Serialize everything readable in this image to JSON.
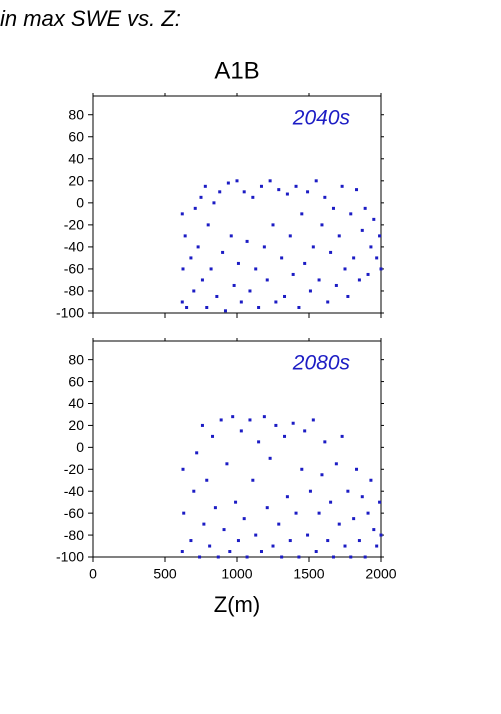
{
  "title": "in max SWE vs. Z:",
  "subtitle": "A1B",
  "chart_data": [
    {
      "type": "scatter",
      "annotation": "2040s",
      "color": "#1c1cc4",
      "ylim": [
        -100,
        97
      ],
      "yticks": [
        -100,
        -80,
        -60,
        -40,
        -20,
        0,
        20,
        40,
        60,
        80
      ],
      "xlim": [
        0,
        2000
      ],
      "x": [
        620,
        620,
        625,
        640,
        650,
        680,
        700,
        710,
        730,
        750,
        760,
        780,
        790,
        800,
        820,
        840,
        860,
        880,
        900,
        920,
        940,
        960,
        980,
        1000,
        1010,
        1030,
        1050,
        1070,
        1090,
        1110,
        1130,
        1150,
        1170,
        1190,
        1210,
        1230,
        1250,
        1270,
        1290,
        1310,
        1330,
        1350,
        1370,
        1390,
        1410,
        1430,
        1450,
        1470,
        1490,
        1510,
        1530,
        1550,
        1570,
        1590,
        1610,
        1630,
        1650,
        1670,
        1690,
        1710,
        1730,
        1750,
        1770,
        1790,
        1810,
        1830,
        1850,
        1870,
        1890,
        1910,
        1930,
        1950,
        1970,
        1990,
        2000
      ],
      "values": [
        -90,
        -10,
        -60,
        -30,
        -95,
        -50,
        -80,
        -5,
        -40,
        5,
        -70,
        15,
        -95,
        -20,
        -60,
        0,
        -85,
        10,
        -45,
        -98,
        18,
        -30,
        -75,
        20,
        -55,
        -90,
        10,
        -35,
        -80,
        5,
        -60,
        -95,
        15,
        -40,
        -70,
        20,
        -20,
        -90,
        12,
        -50,
        -85,
        8,
        -30,
        -65,
        15,
        -95,
        -10,
        -55,
        10,
        -80,
        -40,
        20,
        -70,
        -20,
        5,
        -90,
        -45,
        -5,
        -75,
        -30,
        15,
        -60,
        -85,
        -10,
        -50,
        12,
        -70,
        -25,
        -5,
        -65,
        -40,
        -15,
        -50,
        -30,
        -60
      ]
    },
    {
      "type": "scatter",
      "annotation": "2080s",
      "color": "#1c1cc4",
      "xlabel": "Z(m)",
      "ylim": [
        -100,
        97
      ],
      "yticks": [
        -100,
        -80,
        -60,
        -40,
        -20,
        0,
        20,
        40,
        60,
        80
      ],
      "xlim": [
        0,
        2000
      ],
      "xticks": [
        0,
        500,
        1000,
        1500,
        2000
      ],
      "x": [
        620,
        625,
        630,
        680,
        700,
        720,
        740,
        760,
        770,
        790,
        810,
        830,
        850,
        870,
        890,
        910,
        930,
        950,
        970,
        990,
        1010,
        1030,
        1050,
        1070,
        1090,
        1110,
        1130,
        1150,
        1170,
        1190,
        1210,
        1230,
        1250,
        1270,
        1290,
        1310,
        1330,
        1350,
        1370,
        1390,
        1410,
        1430,
        1450,
        1470,
        1490,
        1510,
        1530,
        1550,
        1570,
        1590,
        1610,
        1630,
        1650,
        1670,
        1690,
        1710,
        1730,
        1750,
        1770,
        1790,
        1810,
        1830,
        1850,
        1870,
        1890,
        1910,
        1930,
        1950,
        1970,
        1990,
        2000
      ],
      "values": [
        -95,
        -20,
        -60,
        -85,
        -40,
        -5,
        -100,
        20,
        -70,
        -30,
        -90,
        10,
        -55,
        -100,
        25,
        -75,
        -15,
        -95,
        28,
        -50,
        -85,
        15,
        -65,
        -100,
        25,
        -30,
        -80,
        5,
        -95,
        28,
        -55,
        -10,
        -90,
        20,
        -70,
        -100,
        10,
        -45,
        -85,
        22,
        -60,
        -100,
        -20,
        15,
        -80,
        -40,
        25,
        -95,
        -60,
        -25,
        5,
        -85,
        -50,
        -100,
        -15,
        -70,
        10,
        -90,
        -40,
        -100,
        -65,
        -20,
        -85,
        -45,
        -100,
        -60,
        -30,
        -75,
        -90,
        -50,
        -80
      ]
    }
  ]
}
